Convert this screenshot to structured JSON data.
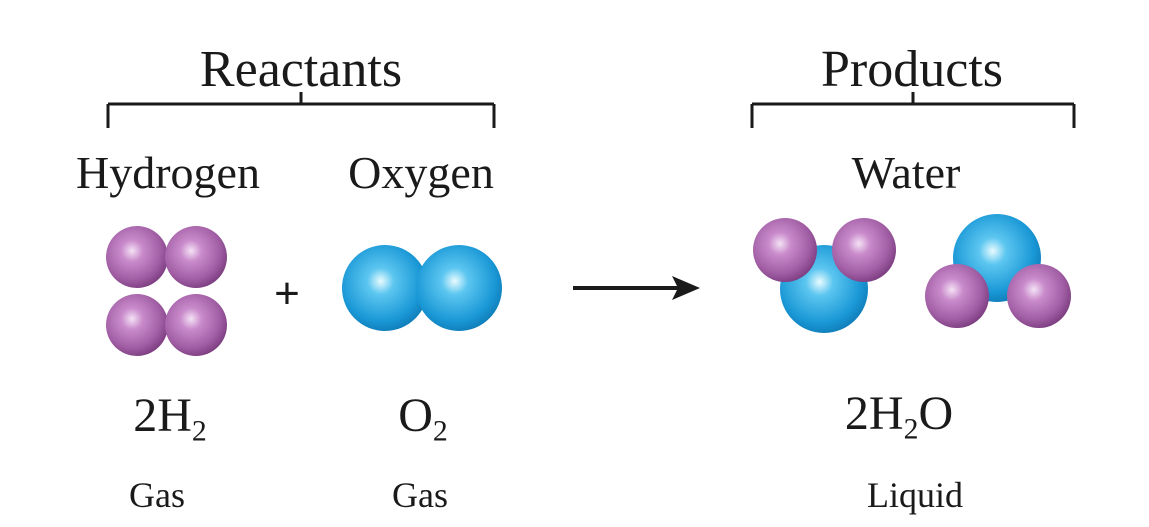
{
  "reactants": {
    "heading": "Reactants",
    "hydrogen": {
      "name": "Hydrogen",
      "formula_coeff": "2H",
      "formula_sub": "2",
      "state": "Gas"
    },
    "oxygen": {
      "name": "Oxygen",
      "formula_coeff": "O",
      "formula_sub": "2",
      "state": "Gas"
    },
    "plus": "+"
  },
  "products": {
    "heading": "Products",
    "water": {
      "name": "Water",
      "formula_coeff": "2H",
      "formula_sub": "2",
      "formula_tail": "O",
      "state": "Liquid"
    }
  },
  "colors": {
    "hydrogen_atom": "#b06ab3",
    "hydrogen_highlight": "#e8c6ea",
    "oxygen_atom": "#1ea0dc",
    "oxygen_highlight": "#bff0ff",
    "line": "#1a1a1a"
  }
}
